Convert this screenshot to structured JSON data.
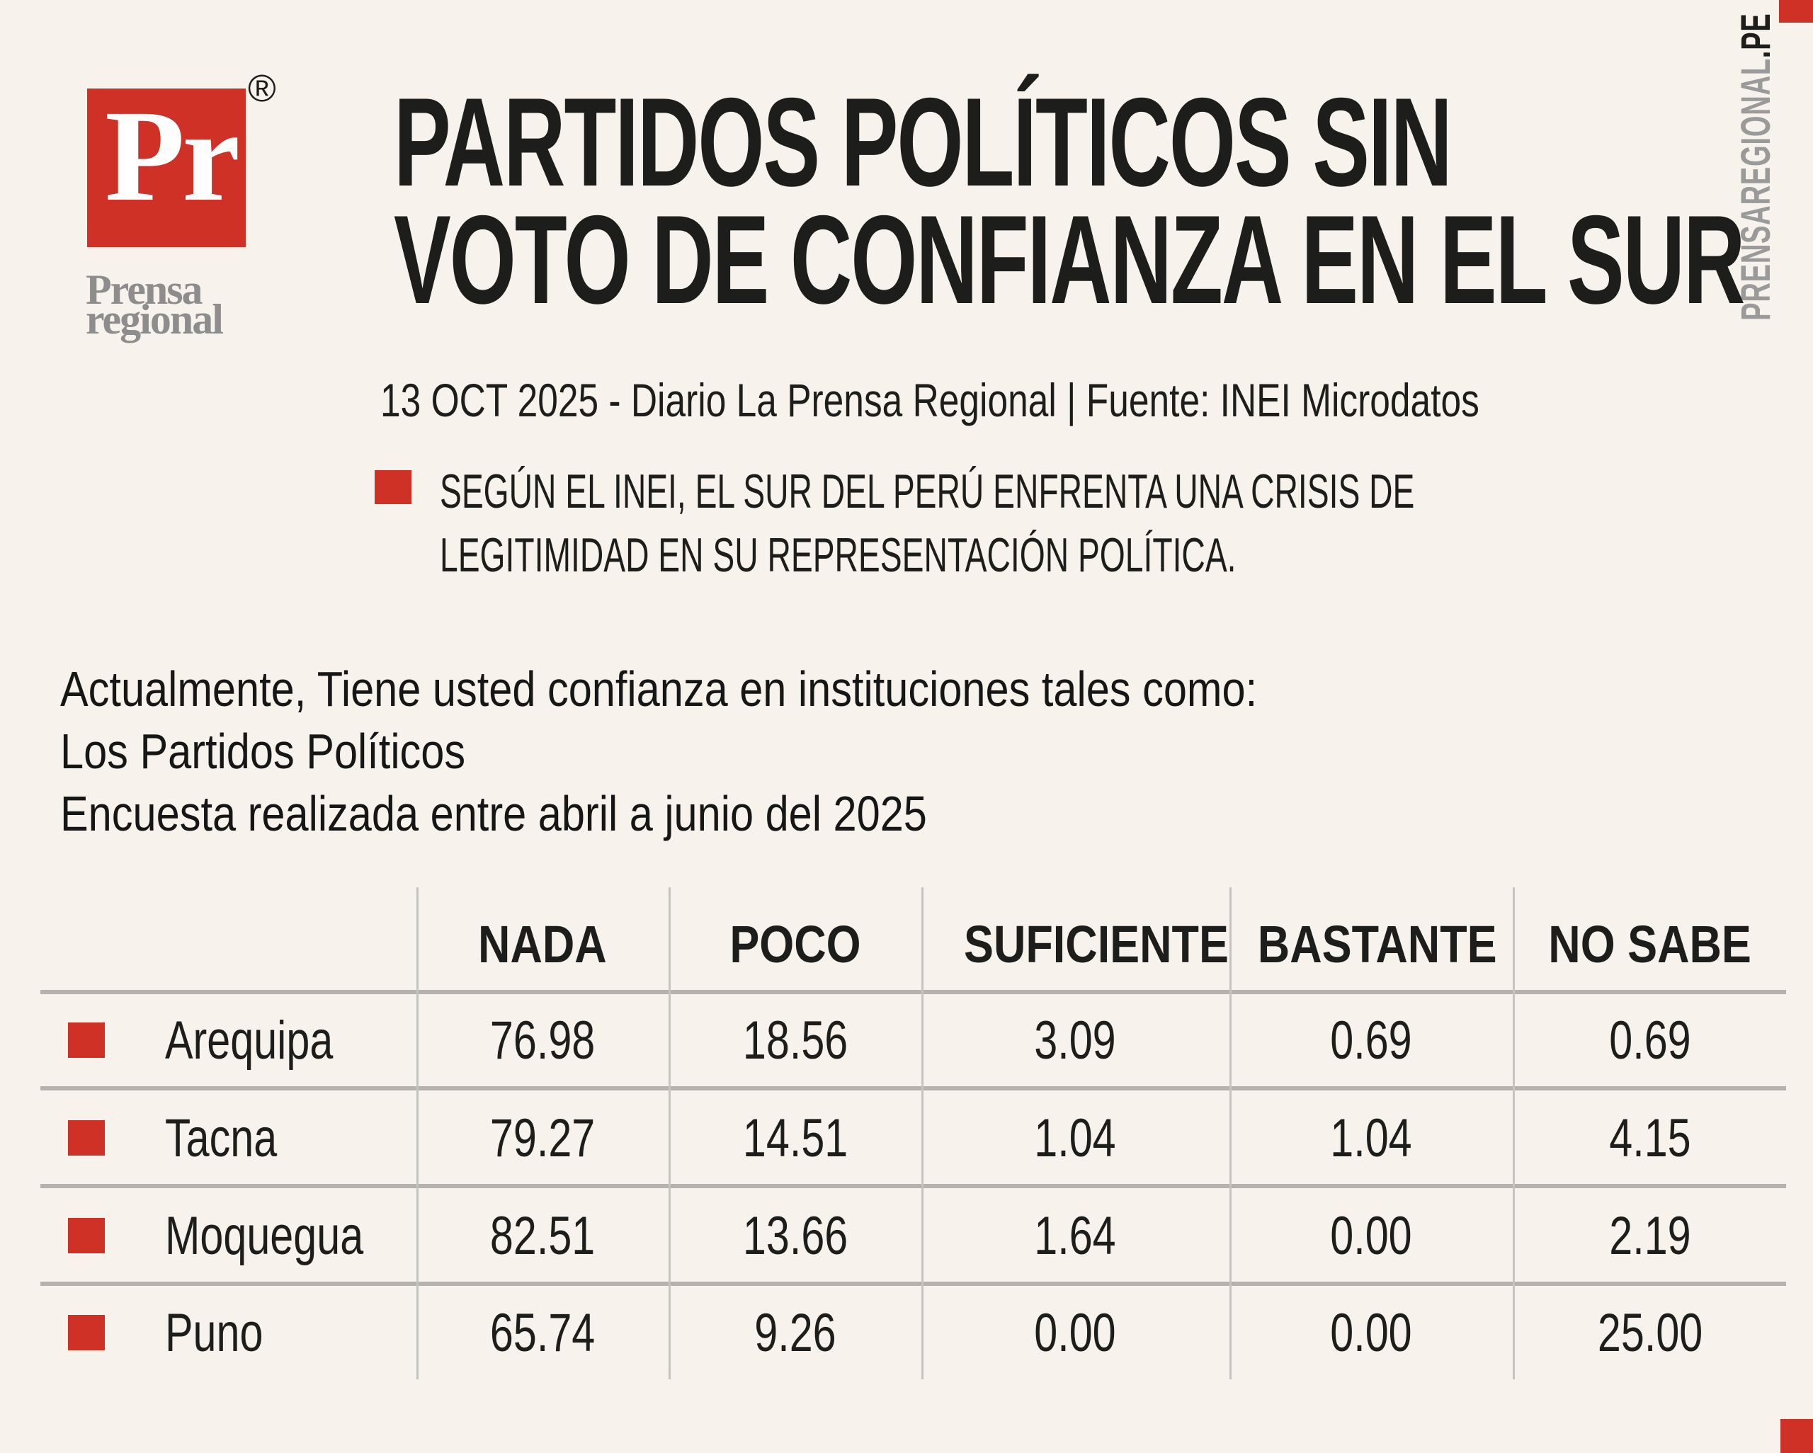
{
  "colors": {
    "background": "#f8f2ec",
    "red": "#cf3127",
    "ink": "#1d1d1b",
    "logo_gray": "#8d8d8d",
    "side_gray": "#9a9a9a",
    "column_line_gray": "#c6c4bf",
    "row_rule_gray": "#b5b2ad"
  },
  "logo": {
    "monogram": "Pr",
    "registered": "®",
    "name_line1": "Prensa",
    "name_line2": "regional"
  },
  "masthead": {
    "headline_line1": "PARTIDOS POLÍTICOS SIN",
    "headline_line2": "VOTO DE CONFIANZA EN EL SUR",
    "dateline": "13 OCT 2025 - Diario La Prensa Regional | Fuente: INEI Microdatos",
    "deck_line1": "SEGÚN EL INEI, EL SUR DEL PERÚ ENFRENTA UNA CRISIS DE",
    "deck_line2": "LEGITIMIDAD EN SU REPRESENTACIÓN POLÍTICA."
  },
  "site": {
    "vertical_gray": "PRENSAREGIONAL",
    "vertical_black": ".PE"
  },
  "question": {
    "line1": "Actualmente, Tiene usted confianza en instituciones tales como:",
    "line2": "Los Partidos Políticos",
    "line3": "Encuesta realizada entre abril a junio del 2025"
  },
  "table": {
    "columns": [
      "NADA",
      "POCO",
      "SUFICIENTE",
      "BASTANTE",
      "NO SABE"
    ],
    "rows": [
      {
        "region": "Arequipa",
        "cells": [
          "76.98",
          "18.56",
          "3.09",
          "0.69",
          "0.69"
        ]
      },
      {
        "region": "Tacna",
        "cells": [
          "79.27",
          "14.51",
          "1.04",
          "1.04",
          "4.15"
        ]
      },
      {
        "region": "Moquegua",
        "cells": [
          "82.51",
          "13.66",
          "1.64",
          "0.00",
          "2.19"
        ]
      },
      {
        "region": "Puno",
        "cells": [
          "65.74",
          "9.26",
          "0.00",
          "0.00",
          "25.00"
        ]
      }
    ]
  },
  "chart_data": {
    "type": "table",
    "title": "Actualmente, Tiene usted confianza en instituciones tales como: Los Partidos Políticos",
    "subtitle": "Encuesta realizada entre abril a junio del 2025",
    "source": "13 OCT 2025 - Diario La Prensa Regional | Fuente: INEI Microdatos",
    "categories": [
      "NADA",
      "POCO",
      "SUFICIENTE",
      "BASTANTE",
      "NO SABE"
    ],
    "unit": "percent",
    "series": [
      {
        "name": "Arequipa",
        "values": [
          76.98,
          18.56,
          3.09,
          0.69,
          0.69
        ]
      },
      {
        "name": "Tacna",
        "values": [
          79.27,
          14.51,
          1.04,
          1.04,
          4.15
        ]
      },
      {
        "name": "Moquegua",
        "values": [
          82.51,
          13.66,
          1.64,
          0.0,
          2.19
        ]
      },
      {
        "name": "Puno",
        "values": [
          65.74,
          9.26,
          0.0,
          0.0,
          25.0
        ]
      }
    ]
  }
}
